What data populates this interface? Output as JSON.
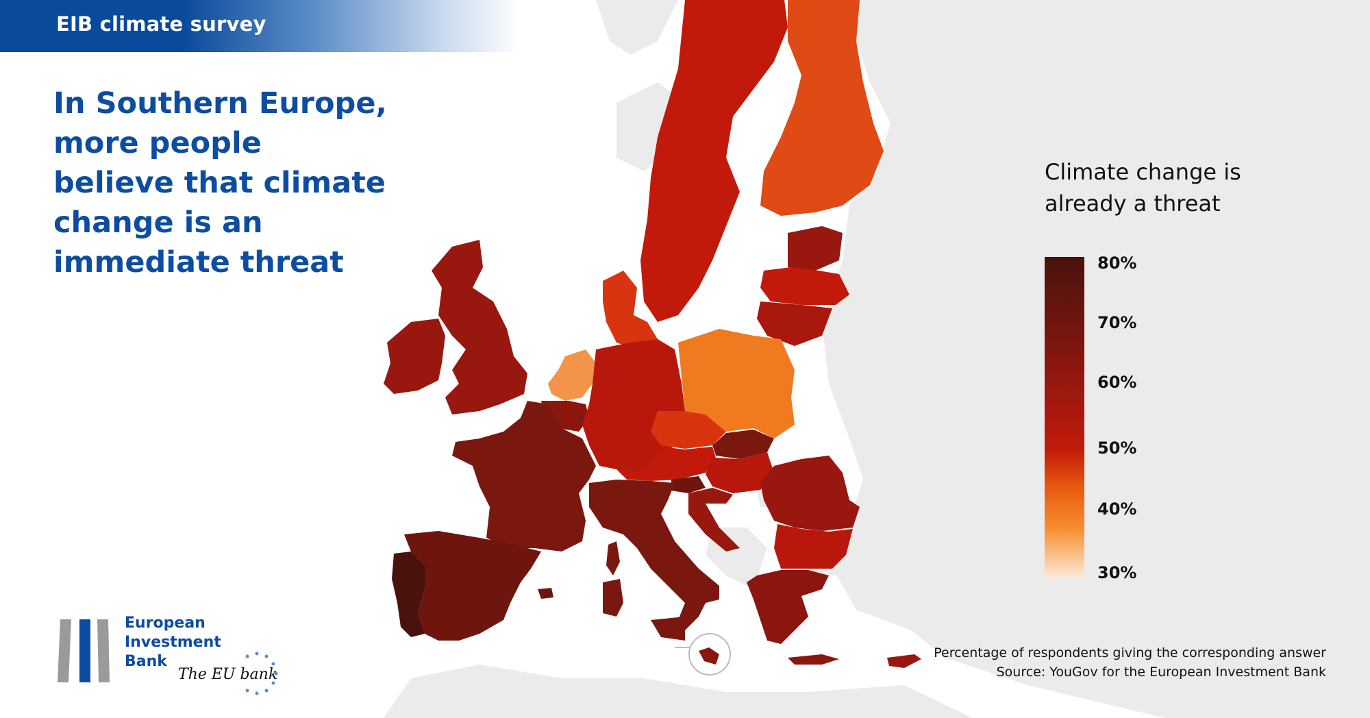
{
  "header": {
    "label": "EIB climate survey"
  },
  "headline": {
    "lines": [
      "In Southern Europe,",
      "more people",
      "believe that climate",
      "change is an",
      "immediate threat"
    ]
  },
  "legend": {
    "title_lines": [
      "Climate change is",
      "already a threat"
    ],
    "ticks": [
      "80%",
      "70%",
      "60%",
      "50%",
      "40%",
      "30%"
    ],
    "colors": {
      "c80": "#4a120c",
      "c70": "#6e150e",
      "c60": "#98170f",
      "c50": "#c21a0a",
      "c40": "#f07a20",
      "c30": "#fbe8d8"
    }
  },
  "notes": {
    "line1": "Percentage of respondents giving the corresponding answer",
    "line2": "Source: YouGov for the European Investment Bank"
  },
  "logo": {
    "lines": [
      "European",
      "Investment",
      "Bank"
    ],
    "tagline": "The EU bank",
    "colors": {
      "blue": "#0c4da2",
      "grey": "#9a9a9a",
      "star": "#5b8cc8"
    }
  },
  "map": {
    "background_land": "#ebebeb",
    "countries": [
      {
        "name": "Portugal",
        "color": "#4a120c"
      },
      {
        "name": "Spain",
        "color": "#6e150e"
      },
      {
        "name": "France",
        "color": "#7a1810"
      },
      {
        "name": "Italy",
        "color": "#7a1810"
      },
      {
        "name": "Greece",
        "color": "#8a160e"
      },
      {
        "name": "Ireland",
        "color": "#98170f"
      },
      {
        "name": "United Kingdom",
        "color": "#98170f"
      },
      {
        "name": "Germany",
        "color": "#b8180c"
      },
      {
        "name": "Poland",
        "color": "#f07a20"
      },
      {
        "name": "Netherlands",
        "color": "#f4944a"
      },
      {
        "name": "Belgium",
        "color": "#8a160e"
      },
      {
        "name": "Denmark",
        "color": "#d8340f"
      },
      {
        "name": "Sweden",
        "color": "#c21a0a"
      },
      {
        "name": "Finland",
        "color": "#e04a15"
      },
      {
        "name": "Estonia",
        "color": "#98170f"
      },
      {
        "name": "Latvia",
        "color": "#c21a0a"
      },
      {
        "name": "Lithuania",
        "color": "#a8180d"
      },
      {
        "name": "Czechia",
        "color": "#d8340f"
      },
      {
        "name": "Austria",
        "color": "#c21a0a"
      },
      {
        "name": "Slovakia",
        "color": "#7a1810"
      },
      {
        "name": "Hungary",
        "color": "#b8180c"
      },
      {
        "name": "Slovenia",
        "color": "#6e150e"
      },
      {
        "name": "Croatia",
        "color": "#98170f"
      },
      {
        "name": "Romania",
        "color": "#98170f"
      },
      {
        "name": "Bulgaria",
        "color": "#b8180c"
      },
      {
        "name": "Cyprus",
        "color": "#98170f"
      },
      {
        "name": "Malta",
        "color": "#8a160e"
      }
    ]
  }
}
